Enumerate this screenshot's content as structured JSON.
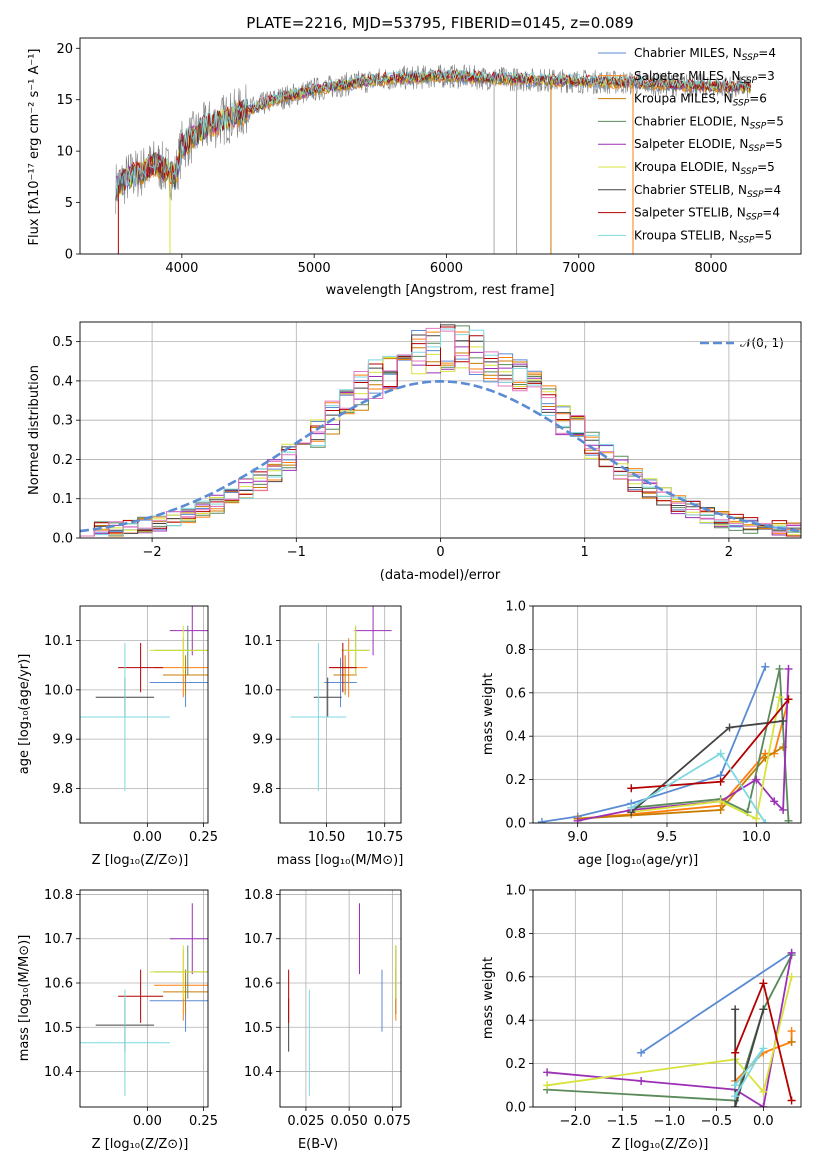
{
  "chart_data": [
    {
      "id": "spectrum",
      "type": "line",
      "title": "PLATE=2216, MJD=53795, FIBERID=0145, z=0.089",
      "xlabel": "wavelength [Angstrom, rest frame]",
      "ylabel": "Flux [fλ10⁻¹⁷ erg cm⁻² s⁻¹ A⁻¹]",
      "xlim": [
        3230,
        8680
      ],
      "ylim": [
        0,
        21
      ],
      "xticks": [
        "4000",
        "5000",
        "6000",
        "7000",
        "8000"
      ],
      "yticks": [
        "0",
        "5",
        "10",
        "15",
        "20"
      ],
      "grid": false,
      "legend_position": "right",
      "legend": [
        {
          "label": "Chabrier MILES, N",
          "sub": "SSP",
          "n": "=4",
          "color": "#5b8bd3"
        },
        {
          "label": "Salpeter MILES, N",
          "sub": "SSP",
          "n": "=3",
          "color": "#ff7f0e"
        },
        {
          "label": "Kroupa MILES, N",
          "sub": "SSP",
          "n": "=6",
          "color": "#c77c00"
        },
        {
          "label": "Chabrier ELODIE, N",
          "sub": "SSP",
          "n": "=5",
          "color": "#5a8a5a"
        },
        {
          "label": "Salpeter ELODIE, N",
          "sub": "SSP",
          "n": "=5",
          "color": "#9b30b5"
        },
        {
          "label": "Kroupa ELODIE, N",
          "sub": "SSP",
          "n": "=5",
          "color": "#d7e33c"
        },
        {
          "label": "Chabrier STELIB, N",
          "sub": "SSP",
          "n": "=4",
          "color": "#444444"
        },
        {
          "label": "Salpeter STELIB, N",
          "sub": "SSP",
          "n": "=4",
          "color": "#b30000"
        },
        {
          "label": "Kroupa STELIB, N",
          "sub": "SSP",
          "n": "=5",
          "color": "#7fd8e0"
        }
      ],
      "data_color": "#808080",
      "continuum": [
        [
          3500,
          6.5
        ],
        [
          3600,
          7.5
        ],
        [
          3700,
          8.0
        ],
        [
          3800,
          8.8
        ],
        [
          3900,
          8.0
        ],
        [
          3950,
          7.5
        ],
        [
          4000,
          10.5
        ],
        [
          4200,
          12.5
        ],
        [
          4400,
          13.5
        ],
        [
          4700,
          15.0
        ],
        [
          5000,
          16.0
        ],
        [
          5500,
          17.0
        ],
        [
          6000,
          17.3
        ],
        [
          6500,
          17.0
        ],
        [
          7000,
          16.8
        ],
        [
          7500,
          16.6
        ],
        [
          8000,
          16.3
        ],
        [
          8300,
          16.2
        ]
      ],
      "spikes": [
        [
          3520,
          0
        ],
        [
          3910,
          0
        ],
        [
          6360,
          0
        ],
        [
          6530,
          0
        ],
        [
          6790,
          0
        ],
        [
          7410,
          0
        ]
      ]
    },
    {
      "id": "residuals",
      "type": "step",
      "xlabel": "(data-model)/error",
      "ylabel": "Normed distribution",
      "xlim": [
        -2.5,
        2.5
      ],
      "ylim": [
        0,
        0.55
      ],
      "xticks": [
        -2,
        -1,
        0,
        1,
        2
      ],
      "xticklabels": [
        "−2",
        "−1",
        "0",
        "1",
        "2"
      ],
      "yticks": [
        0,
        0.1,
        0.2,
        0.3,
        0.4,
        0.5
      ],
      "yticklabels": [
        "0.0",
        "0.1",
        "0.2",
        "0.3",
        "0.4",
        "0.5"
      ],
      "grid": true,
      "legend_position": "top-right",
      "normal_label": "𝒩(0, 1)",
      "normal_color": "#5b8bd3"
    },
    {
      "id": "age-vs-Z",
      "type": "scatter",
      "xlabel": "Z [log₁₀(Z/Z⊙)]",
      "ylabel": "age  [log₁₀(age/yr)]",
      "xlim": [
        -0.3,
        0.27
      ],
      "ylim": [
        9.73,
        10.17
      ],
      "xticks": [
        "0.00",
        "0.25"
      ],
      "yticks": [
        "9.8",
        "9.9",
        "10.0",
        "10.1"
      ],
      "grid": true
    },
    {
      "id": "age-vs-mass",
      "type": "scatter",
      "xlabel": "mass [log₁₀(M/M⊙)]",
      "ylabel": "",
      "xlim": [
        10.3,
        10.82
      ],
      "ylim": [
        9.73,
        10.17
      ],
      "xticks": [
        "10.50",
        "10.75"
      ],
      "yticks": [
        "9.8",
        "9.9",
        "10.0",
        "10.1"
      ],
      "grid": true
    },
    {
      "id": "weight-vs-age",
      "type": "line",
      "xlabel": "age  [log₁₀(age/yr)]",
      "ylabel": "mass weight",
      "xlim": [
        8.75,
        10.25
      ],
      "ylim": [
        0,
        1
      ],
      "xticks": [
        "9.0",
        "9.5",
        "10.0"
      ],
      "yticks": [
        "0.0",
        "0.2",
        "0.4",
        "0.6",
        "0.8",
        "1.0"
      ],
      "grid": true
    },
    {
      "id": "mass-vs-Z",
      "type": "scatter",
      "xlabel": "Z [log₁₀(Z/Z⊙)]",
      "ylabel": "mass [log₁₀(M/M⊙)]",
      "xlim": [
        -0.3,
        0.27
      ],
      "ylim": [
        10.32,
        10.81
      ],
      "xticks": [
        "0.00",
        "0.25"
      ],
      "yticks": [
        "10.4",
        "10.5",
        "10.6",
        "10.7",
        "10.8"
      ],
      "grid": true
    },
    {
      "id": "mass-vs-EBV",
      "type": "scatter",
      "xlabel": "E(B-V)",
      "ylabel": "",
      "xlim": [
        0.01,
        0.08
      ],
      "ylim": [
        10.32,
        10.81
      ],
      "xticks": [
        "0.025",
        "0.050",
        "0.075"
      ],
      "yticks": [
        "10.4",
        "10.5",
        "10.6",
        "10.7",
        "10.8"
      ],
      "grid": true
    },
    {
      "id": "weight-vs-Z",
      "type": "line",
      "xlabel": "Z [log₁₀(Z/Z⊙)]",
      "ylabel": "mass weight",
      "xlim": [
        -2.45,
        0.4
      ],
      "ylim": [
        0,
        1
      ],
      "xticks": [
        "−2.0",
        "−1.5",
        "−1.0",
        "−0.5",
        "0.0"
      ],
      "yticks": [
        "0.0",
        "0.2",
        "0.4",
        "0.6",
        "0.8",
        "1.0"
      ],
      "grid": true
    }
  ],
  "models": [
    {
      "name": "Chabrier MILES",
      "color": "#5b8bd3",
      "Z": 0.17,
      "age": 10.015,
      "mass": 10.56,
      "ebv": 0.069,
      "zerr": 0.16,
      "aerr": 0.05,
      "merr": 0.07,
      "age_w": [
        [
          8.8,
          0.005
        ],
        [
          9.0,
          0.03
        ],
        [
          9.3,
          0.09
        ],
        [
          9.8,
          0.22
        ],
        [
          10.05,
          0.72
        ]
      ],
      "z_w": [
        [
          -1.3,
          0.25
        ],
        [
          0.3,
          0.71
        ]
      ]
    },
    {
      "name": "Salpeter MILES",
      "color": "#ff7f0e",
      "Z": 0.16,
      "age": 10.045,
      "mass": 10.595,
      "ebv": 0.077,
      "zerr": 0.13,
      "aerr": 0.06,
      "merr": 0.08,
      "age_w": [
        [
          9.0,
          0.02
        ],
        [
          9.3,
          0.04
        ],
        [
          9.8,
          0.08
        ],
        [
          10.05,
          0.32
        ],
        [
          10.1,
          0.32
        ],
        [
          10.18,
          0.57
        ]
      ],
      "z_w": [
        [
          -0.3,
          0.12
        ],
        [
          0.0,
          0.25
        ],
        [
          0.3,
          0.3
        ],
        [
          0.3,
          0.35
        ]
      ]
    },
    {
      "name": "Kroupa MILES",
      "color": "#c77c00",
      "Z": 0.17,
      "age": 10.03,
      "mass": 10.58,
      "ebv": 0.077,
      "zerr": 0.1,
      "aerr": 0.04,
      "merr": 0.05,
      "age_w": [
        [
          9.0,
          0.02
        ],
        [
          9.8,
          0.06
        ],
        [
          10.05,
          0.3
        ],
        [
          10.15,
          0.35
        ]
      ],
      "z_w": [
        [
          0.3,
          0.3
        ]
      ]
    },
    {
      "name": "Chabrier ELODIE",
      "color": "#5a8a5a",
      "Z": 0.18,
      "age": 10.08,
      "mass": 10.625,
      "ebv": 0.077,
      "zerr": 0.15,
      "aerr": 0.05,
      "merr": 0.06,
      "age_w": [
        [
          9.3,
          0.07
        ],
        [
          9.8,
          0.11
        ],
        [
          9.95,
          0.05
        ],
        [
          10.13,
          0.71
        ],
        [
          10.18,
          0.01
        ]
      ],
      "z_w": [
        [
          -2.3,
          0.08
        ],
        [
          -0.3,
          0.03
        ],
        [
          0.0,
          0.45
        ],
        [
          0.3,
          0.7
        ]
      ]
    },
    {
      "name": "Salpeter ELODIE",
      "color": "#9b30b5",
      "Z": 0.2,
      "age": 10.12,
      "mass": 10.7,
      "ebv": 0.056,
      "zerr": 0.1,
      "aerr": 0.05,
      "merr": 0.08,
      "age_w": [
        [
          9.0,
          0.01
        ],
        [
          9.3,
          0.06
        ],
        [
          9.8,
          0.1
        ],
        [
          10.0,
          0.2
        ],
        [
          10.1,
          0.1
        ],
        [
          10.15,
          0.06
        ],
        [
          10.18,
          0.71
        ]
      ],
      "z_w": [
        [
          -2.3,
          0.16
        ],
        [
          -1.3,
          0.12
        ],
        [
          -0.3,
          0.08
        ],
        [
          0.0,
          0.0
        ],
        [
          0.3,
          0.71
        ]
      ]
    },
    {
      "name": "Kroupa ELODIE",
      "color": "#d7e33c",
      "Z": 0.16,
      "age": 10.08,
      "mass": 10.625,
      "ebv": 0.077,
      "zerr": 0.15,
      "aerr": 0.05,
      "merr": 0.06,
      "age_w": [
        [
          9.3,
          0.05
        ],
        [
          9.8,
          0.1
        ],
        [
          10.0,
          0.02
        ],
        [
          10.13,
          0.58
        ]
      ],
      "z_w": [
        [
          -2.3,
          0.1
        ],
        [
          -0.3,
          0.22
        ],
        [
          0.0,
          0.07
        ],
        [
          0.3,
          0.6
        ]
      ]
    },
    {
      "name": "Chabrier STELIB",
      "color": "#444444",
      "Z": -0.1,
      "age": 9.985,
      "mass": 10.505,
      "ebv": 0.015,
      "zerr": 0.13,
      "aerr": 0.04,
      "merr": 0.06,
      "age_w": [
        [
          9.3,
          0.05
        ],
        [
          9.85,
          0.44
        ],
        [
          10.15,
          0.47
        ]
      ],
      "z_w": [
        [
          -0.3,
          0.45
        ],
        [
          -0.3,
          0.0
        ],
        [
          0.0,
          0.45
        ]
      ]
    },
    {
      "name": "Salpeter STELIB",
      "color": "#b30000",
      "Z": -0.03,
      "age": 10.045,
      "mass": 10.57,
      "ebv": 0.015,
      "zerr": 0.1,
      "aerr": 0.05,
      "merr": 0.06,
      "age_w": [
        [
          9.3,
          0.16
        ],
        [
          9.8,
          0.19
        ],
        [
          10.18,
          0.57
        ]
      ],
      "z_w": [
        [
          -0.3,
          0.25
        ],
        [
          0.0,
          0.57
        ],
        [
          0.3,
          0.03
        ]
      ]
    },
    {
      "name": "Kroupa STELIB",
      "color": "#7fd8e0",
      "Z": -0.1,
      "age": 9.945,
      "mass": 10.465,
      "ebv": 0.027,
      "zerr": 0.2,
      "aerr": 0.15,
      "merr": 0.12,
      "age_w": [
        [
          9.3,
          0.07
        ],
        [
          9.8,
          0.32
        ],
        [
          10.05,
          0.0
        ]
      ],
      "z_w": [
        [
          -0.3,
          0.05
        ],
        [
          0.0,
          0.27
        ],
        [
          -0.3,
          0.1
        ]
      ]
    }
  ],
  "normal_extra": {
    "pink": "#e377c2"
  }
}
